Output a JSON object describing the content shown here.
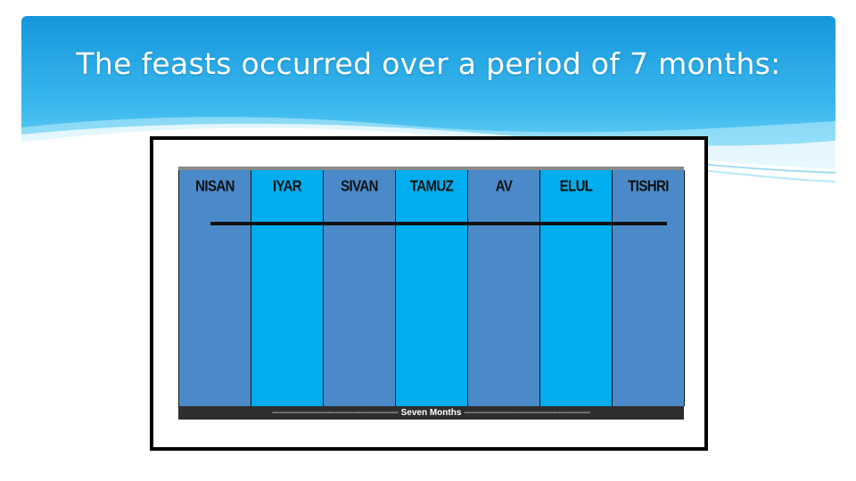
{
  "slide": {
    "title": "The feasts occurred over a period of 7 months:"
  },
  "diagram": {
    "months": [
      {
        "label": "NISAN",
        "tone": "dark"
      },
      {
        "label": "IYAR",
        "tone": "light"
      },
      {
        "label": "SIVAN",
        "tone": "dark"
      },
      {
        "label": "TAMUZ",
        "tone": "light"
      },
      {
        "label": "AV",
        "tone": "dark"
      },
      {
        "label": "ELUL",
        "tone": "light"
      },
      {
        "label": "TISHRI",
        "tone": "dark"
      }
    ],
    "footer_label": "Seven Months",
    "footer_dashes": "--------------------------------------------------",
    "colors": {
      "dark_column": "#4a8ac9",
      "light_column": "#00aeef",
      "banner_top": "#1ba0e2",
      "banner_bottom": "#6fd3f7"
    }
  }
}
